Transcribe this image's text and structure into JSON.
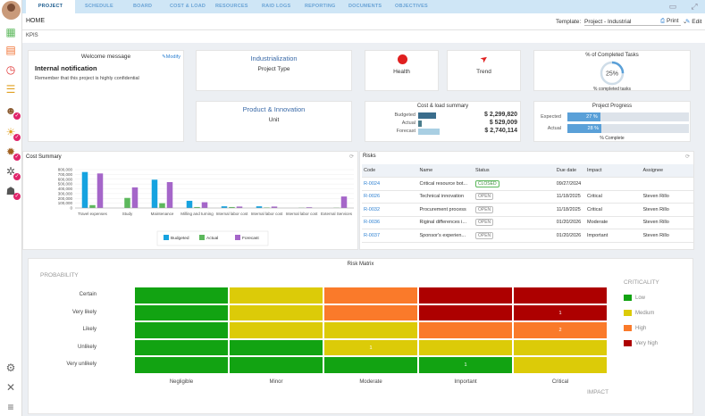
{
  "nav": {
    "tabs": [
      "PROJECT",
      "SCHEDULE",
      "BOARD",
      "COST & LOAD",
      "RESOURCES",
      "RAID LOGS",
      "REPORTING",
      "DOCUMENTS",
      "OBJECTIVES"
    ],
    "active": "PROJECT"
  },
  "header": {
    "title": "HOME",
    "template_label": "Template:",
    "template_value": "Project - Industrial",
    "print": "Print",
    "edit": "Edit"
  },
  "kpis_label": "KPIS",
  "welcome": {
    "title": "Welcome message",
    "modify": "Modify",
    "heading": "Internal notification",
    "text": "Remember that this project is highly confidential"
  },
  "industrialization": {
    "title": "Industrialization",
    "value": "Project Type"
  },
  "product": {
    "title": "Product & Innovation",
    "value": "Unit"
  },
  "health": {
    "label": "Health",
    "color": "#e02020"
  },
  "trend": {
    "label": "Trend",
    "color": "#e02020"
  },
  "completed": {
    "title": "% of Completed Tasks",
    "value": "25%",
    "caption": "% completed tasks",
    "fraction": 0.25
  },
  "cost_summary_card": {
    "title": "Cost & load summary",
    "rows": [
      {
        "label": "Budgeted",
        "value": "$ 2,299,820",
        "fraction": 0.64,
        "color": "#3a6d8c"
      },
      {
        "label": "Actual",
        "value": "$ 529,009",
        "fraction": 0.12,
        "color": "#4b7d8c"
      },
      {
        "label": "Forecast",
        "value": "$ 2,740,114",
        "fraction": 0.76,
        "color": "#a9cfe3"
      }
    ]
  },
  "progress": {
    "title": "Project Progress",
    "rows": [
      {
        "label": "Expected",
        "value": "27 %",
        "fraction": 0.27
      },
      {
        "label": "Actual",
        "value": "28 %",
        "fraction": 0.28
      }
    ],
    "caption": "% Complete"
  },
  "cost_chart_title": "Cost Summary",
  "chart_data": {
    "type": "bar",
    "title": "Cost Summary",
    "categories": [
      "Travel expenses",
      "Study",
      "Maintenance",
      "Milling and turning",
      "Internal labor cost",
      "Internal labor cost",
      "Internal labor cost",
      "External Services"
    ],
    "series": [
      {
        "name": "Budgeted",
        "color": "#16a3e0",
        "values": [
          750000,
          0,
          590000,
          150000,
          35000,
          35000,
          0,
          0
        ]
      },
      {
        "name": "Actual",
        "color": "#5cb85c",
        "values": [
          60000,
          210000,
          100000,
          20000,
          20000,
          10000,
          5000,
          5000
        ]
      },
      {
        "name": "Forecast",
        "color": "#a566c9",
        "values": [
          720000,
          430000,
          540000,
          120000,
          30000,
          30000,
          15000,
          240000
        ]
      }
    ],
    "yticks": [
      "800,000",
      "700,000",
      "600,000",
      "500,000",
      "400,000",
      "300,000",
      "200,000",
      "100,000",
      "0"
    ],
    "ylim": [
      0,
      800000
    ],
    "legend": [
      "Budgeted",
      "Actual",
      "Forecast"
    ]
  },
  "risks": {
    "title": "Risks",
    "columns": [
      "Code",
      "Name",
      "Status",
      "Due date",
      "Impact",
      "Assignee"
    ],
    "rows": [
      {
        "code": "R-0024",
        "name": "Critical resource bot...",
        "status": "CLOSED",
        "due": "09/27/2024",
        "impact": "",
        "assignee": ""
      },
      {
        "code": "R-0026",
        "name": "Technical innovation",
        "status": "OPEN",
        "due": "11/18/2025",
        "impact": "Critical",
        "assignee": "Steven Rillo"
      },
      {
        "code": "R-0032",
        "name": "Procurement process",
        "status": "OPEN",
        "due": "11/18/2025",
        "impact": "Critical",
        "assignee": "Steven Rillo"
      },
      {
        "code": "R-0036",
        "name": "Riginal differences i...",
        "status": "OPEN",
        "due": "01/20/2026",
        "impact": "Moderate",
        "assignee": "Steven Rillo"
      },
      {
        "code": "R-0037",
        "name": "Sponsor's experien...",
        "status": "OPEN",
        "due": "01/20/2026",
        "impact": "Important",
        "assignee": "Steven Rillo"
      }
    ]
  },
  "matrix": {
    "title": "Risk Matrix",
    "probability_label": "PROBABILITY",
    "impact_label": "IMPACT",
    "criticality_label": "CRITICALITY",
    "probabilities": [
      "Certain",
      "Very likely",
      "Likely",
      "Unlikely",
      "Very unlikely"
    ],
    "impacts": [
      "Negligible",
      "Minor",
      "Moderate",
      "Important",
      "Critical"
    ],
    "colors": {
      "low": "#12a312",
      "medium": "#dccb08",
      "high": "#fa7a2a",
      "very_high": "#ad0000"
    },
    "grid": [
      [
        "low",
        "medium",
        "high",
        "very_high",
        "very_high"
      ],
      [
        "low",
        "medium",
        "high",
        "very_high",
        "very_high"
      ],
      [
        "low",
        "medium",
        "medium",
        "high",
        "high"
      ],
      [
        "low",
        "low",
        "medium",
        "medium",
        "medium"
      ],
      [
        "low",
        "low",
        "low",
        "low",
        "medium"
      ]
    ],
    "counts": [
      [
        "",
        "",
        "",
        "",
        ""
      ],
      [
        "",
        "",
        "",
        "",
        "1"
      ],
      [
        "",
        "",
        "",
        "",
        "2"
      ],
      [
        "",
        "",
        "1",
        "",
        ""
      ],
      [
        "",
        "",
        "",
        "1",
        ""
      ]
    ],
    "legend": [
      {
        "key": "low",
        "label": "Low"
      },
      {
        "key": "medium",
        "label": "Medium"
      },
      {
        "key": "high",
        "label": "High"
      },
      {
        "key": "very_high",
        "label": "Very high"
      }
    ]
  }
}
